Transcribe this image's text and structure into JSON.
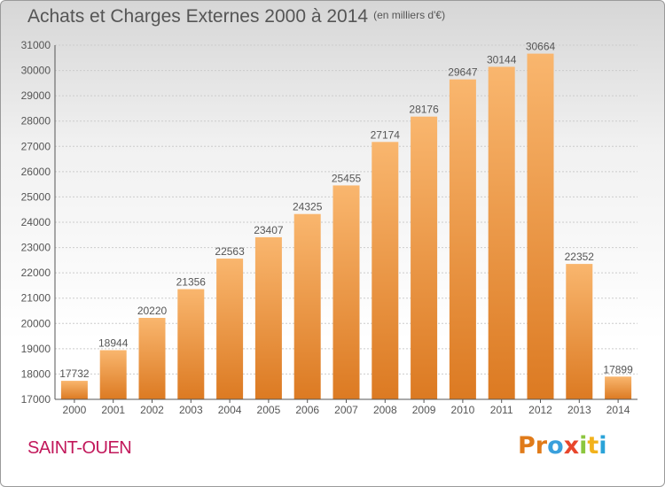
{
  "title": "Achats et Charges Externes 2000 à 2014",
  "unit_label": "(en milliers d'€)",
  "commune": "SAINT-OUEN",
  "logo": {
    "text": "Proxiti",
    "colors": [
      "#e07b1a",
      "#e07b1a",
      "#3aa0dc",
      "#e8462c",
      "#8cc63f",
      "#f2b21c",
      "#2aa3d8"
    ]
  },
  "colors": {
    "bar_light": "#f9b66e",
    "bar_dark": "#dc7a22",
    "axis": "#555555",
    "grid": "#cccccc",
    "title": "#555555",
    "commune": "#c2185b"
  },
  "chart_data": {
    "type": "bar",
    "title": "Achats et Charges Externes 2000 à 2014",
    "xlabel": "",
    "ylabel": "",
    "categories": [
      "2000",
      "2001",
      "2002",
      "2003",
      "2004",
      "2005",
      "2006",
      "2007",
      "2008",
      "2009",
      "2010",
      "2011",
      "2012",
      "2013",
      "2014"
    ],
    "values": [
      17732,
      18944,
      20220,
      21356,
      22563,
      23407,
      24325,
      25455,
      27174,
      28176,
      29647,
      30144,
      30664,
      22352,
      17899
    ],
    "ylim": [
      17000,
      31000
    ],
    "yticks": [
      17000,
      18000,
      19000,
      20000,
      21000,
      22000,
      23000,
      24000,
      25000,
      26000,
      27000,
      28000,
      29000,
      30000,
      31000
    ],
    "grid": true,
    "data_labels": true
  }
}
